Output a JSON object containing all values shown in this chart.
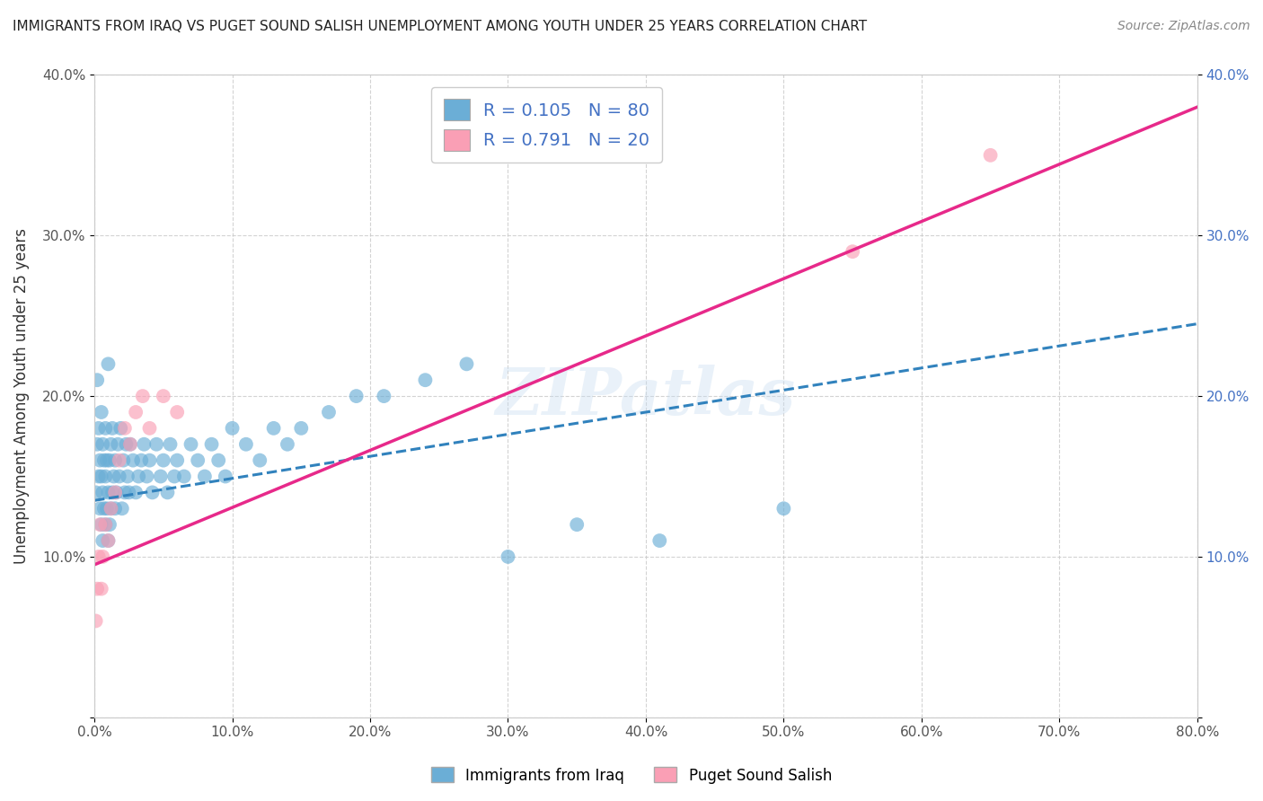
{
  "title": "IMMIGRANTS FROM IRAQ VS PUGET SOUND SALISH UNEMPLOYMENT AMONG YOUTH UNDER 25 YEARS CORRELATION CHART",
  "source": "Source: ZipAtlas.com",
  "ylabel": "Unemployment Among Youth under 25 years",
  "legend_labels": [
    "Immigrants from Iraq",
    "Puget Sound Salish"
  ],
  "r_blue": 0.105,
  "n_blue": 80,
  "r_pink": 0.791,
  "n_pink": 20,
  "xlim": [
    0,
    0.8
  ],
  "ylim": [
    0,
    0.4
  ],
  "x_ticks": [
    0.0,
    0.1,
    0.2,
    0.3,
    0.4,
    0.5,
    0.6,
    0.7,
    0.8
  ],
  "y_ticks": [
    0.0,
    0.1,
    0.2,
    0.3,
    0.4
  ],
  "x_tick_labels": [
    "0.0%",
    "10.0%",
    "20.0%",
    "30.0%",
    "40.0%",
    "50.0%",
    "60.0%",
    "70.0%",
    "80.0%"
  ],
  "y_tick_labels": [
    "",
    "10.0%",
    "20.0%",
    "30.0%",
    "40.0%"
  ],
  "y_tick_labels_right": [
    "",
    "10.0%",
    "20.0%",
    "30.0%",
    "40.0%"
  ],
  "color_blue": "#6baed6",
  "color_pink": "#fa9fb5",
  "color_blue_line": "#3182bd",
  "color_pink_line": "#e7298a",
  "watermark": "ZIPatlas",
  "blue_scatter_x": [
    0.001,
    0.002,
    0.002,
    0.003,
    0.003,
    0.004,
    0.004,
    0.005,
    0.005,
    0.005,
    0.006,
    0.006,
    0.006,
    0.007,
    0.007,
    0.008,
    0.008,
    0.008,
    0.009,
    0.009,
    0.01,
    0.01,
    0.01,
    0.011,
    0.011,
    0.012,
    0.012,
    0.013,
    0.013,
    0.014,
    0.015,
    0.015,
    0.016,
    0.017,
    0.018,
    0.019,
    0.02,
    0.021,
    0.022,
    0.023,
    0.024,
    0.025,
    0.026,
    0.028,
    0.03,
    0.032,
    0.034,
    0.036,
    0.038,
    0.04,
    0.042,
    0.045,
    0.048,
    0.05,
    0.053,
    0.055,
    0.058,
    0.06,
    0.065,
    0.07,
    0.075,
    0.08,
    0.085,
    0.09,
    0.095,
    0.1,
    0.11,
    0.12,
    0.13,
    0.14,
    0.15,
    0.17,
    0.19,
    0.21,
    0.24,
    0.27,
    0.3,
    0.35,
    0.41,
    0.5
  ],
  "blue_scatter_y": [
    0.14,
    0.17,
    0.21,
    0.15,
    0.18,
    0.13,
    0.16,
    0.12,
    0.15,
    0.19,
    0.11,
    0.14,
    0.17,
    0.13,
    0.16,
    0.12,
    0.15,
    0.18,
    0.13,
    0.16,
    0.11,
    0.14,
    0.22,
    0.12,
    0.16,
    0.13,
    0.17,
    0.14,
    0.18,
    0.15,
    0.13,
    0.16,
    0.14,
    0.17,
    0.15,
    0.18,
    0.13,
    0.16,
    0.14,
    0.17,
    0.15,
    0.14,
    0.17,
    0.16,
    0.14,
    0.15,
    0.16,
    0.17,
    0.15,
    0.16,
    0.14,
    0.17,
    0.15,
    0.16,
    0.14,
    0.17,
    0.15,
    0.16,
    0.15,
    0.17,
    0.16,
    0.15,
    0.17,
    0.16,
    0.15,
    0.18,
    0.17,
    0.16,
    0.18,
    0.17,
    0.18,
    0.19,
    0.2,
    0.2,
    0.21,
    0.22,
    0.1,
    0.12,
    0.11,
    0.13
  ],
  "pink_scatter_x": [
    0.001,
    0.002,
    0.003,
    0.004,
    0.005,
    0.006,
    0.008,
    0.01,
    0.012,
    0.015,
    0.018,
    0.022,
    0.026,
    0.03,
    0.035,
    0.04,
    0.05,
    0.06,
    0.55,
    0.65
  ],
  "pink_scatter_y": [
    0.06,
    0.08,
    0.1,
    0.12,
    0.08,
    0.1,
    0.12,
    0.11,
    0.13,
    0.14,
    0.16,
    0.18,
    0.17,
    0.19,
    0.2,
    0.18,
    0.2,
    0.19,
    0.29,
    0.35
  ],
  "background_color": "#ffffff",
  "grid_color": "#c8c8c8"
}
